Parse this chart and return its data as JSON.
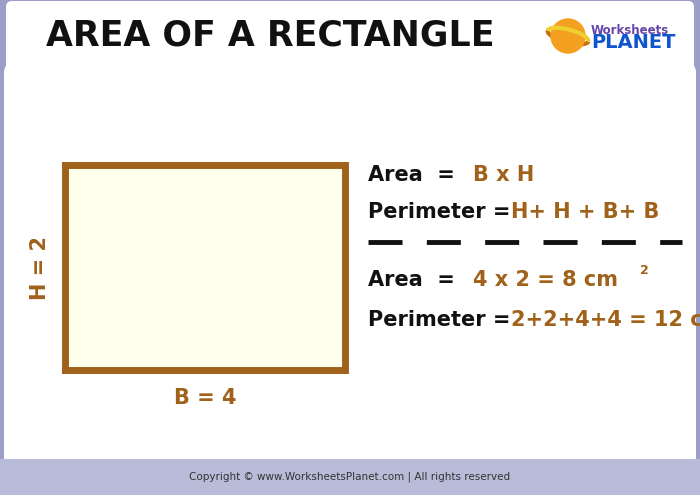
{
  "title": "AREA OF A RECTANGLE",
  "bg_outer": "#9b9fc8",
  "bg_inner": "#ffffff",
  "title_color": "#111111",
  "rect_fill": "#ffffee",
  "rect_edge": "#a0621a",
  "formula_color": "#a0621a",
  "black": "#111111",
  "dashed_color": "#111111",
  "footer_text": "Copyright © www.WorksheetsPlanet.com | All rights reserved",
  "h_label": "H = 2",
  "b_label": "B = 4",
  "logo_planet_color": "#f4a020",
  "logo_ring_color": "#f0d030",
  "logo_text1": "Worksheets",
  "logo_text2": "PLANET",
  "logo_text1_color": "#6644aa",
  "logo_text2_color": "#1155cc"
}
